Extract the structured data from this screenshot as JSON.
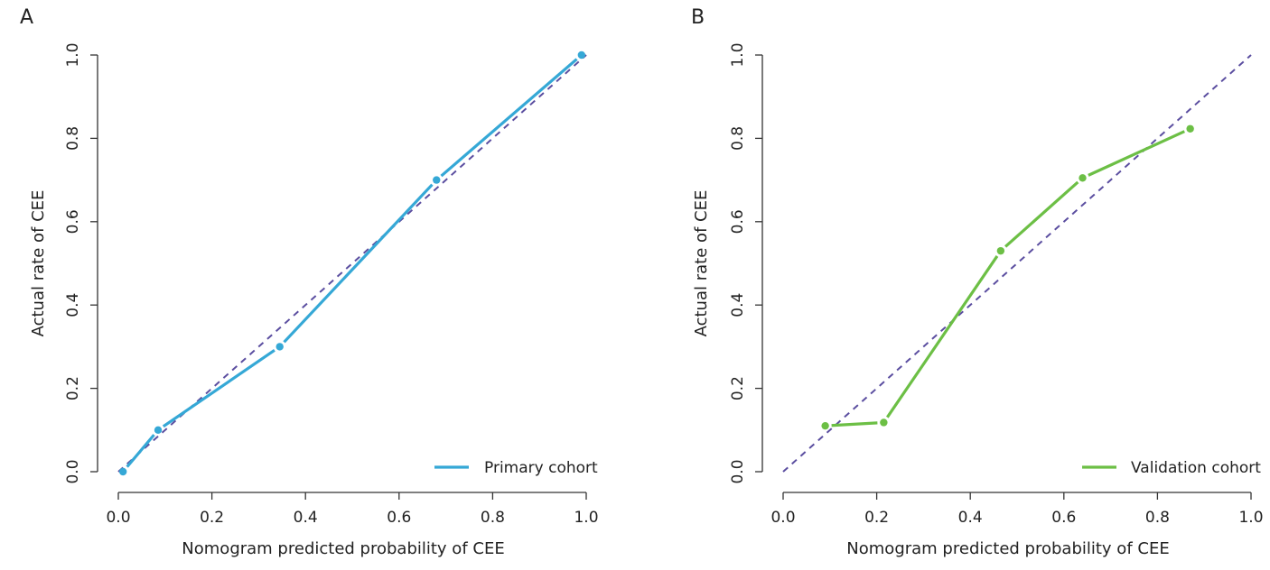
{
  "chart_data": [
    {
      "panel_label": "A",
      "type": "line",
      "xlabel": "Nomogram predicted probability of CEE",
      "ylabel": "Actual rate of CEE",
      "xlim": [
        0.0,
        1.0
      ],
      "ylim": [
        0.0,
        1.0
      ],
      "xticks": [
        "0.0",
        "0.2",
        "0.4",
        "0.6",
        "0.8",
        "1.0"
      ],
      "yticks": [
        "0.0",
        "0.2",
        "0.4",
        "0.6",
        "0.8",
        "1.0"
      ],
      "reference_line": {
        "from": [
          0,
          0
        ],
        "to": [
          1,
          1
        ],
        "style": "dashed",
        "color": "#5b4ea0"
      },
      "series": [
        {
          "name": "Primary cohort",
          "color": "#35a8d6",
          "x": [
            0.01,
            0.085,
            0.345,
            0.68,
            0.99
          ],
          "y": [
            0.0,
            0.1,
            0.3,
            0.7,
            1.0
          ]
        }
      ],
      "legend": "bottom-right",
      "grid": false
    },
    {
      "panel_label": "B",
      "type": "line",
      "xlabel": "Nomogram predicted probability of CEE",
      "ylabel": "Actual rate of CEE",
      "xlim": [
        0.0,
        1.0
      ],
      "ylim": [
        0.0,
        1.0
      ],
      "xticks": [
        "0.0",
        "0.2",
        "0.4",
        "0.6",
        "0.8",
        "1.0"
      ],
      "yticks": [
        "0.0",
        "0.2",
        "0.4",
        "0.6",
        "0.8",
        "1.0"
      ],
      "reference_line": {
        "from": [
          0,
          0
        ],
        "to": [
          1,
          1
        ],
        "style": "dashed",
        "color": "#5b4ea0"
      },
      "series": [
        {
          "name": "Validation cohort",
          "color": "#6cbf45",
          "x": [
            0.09,
            0.215,
            0.465,
            0.64,
            0.87
          ],
          "y": [
            0.11,
            0.118,
            0.53,
            0.705,
            0.823
          ]
        }
      ],
      "legend": "bottom-right",
      "grid": false
    }
  ]
}
